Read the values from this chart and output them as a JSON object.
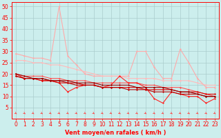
{
  "title": "",
  "xlabel": "Vent moyen/en rafales ( km/h )",
  "ylabel": "",
  "xlim": [
    -0.5,
    23.5
  ],
  "ylim": [
    0,
    52
  ],
  "yticks": [
    5,
    10,
    15,
    20,
    25,
    30,
    35,
    40,
    45,
    50
  ],
  "xticks": [
    0,
    1,
    2,
    3,
    4,
    5,
    6,
    7,
    8,
    9,
    10,
    11,
    12,
    13,
    14,
    15,
    16,
    17,
    18,
    19,
    20,
    21,
    22,
    23
  ],
  "bg_color": "#cceeed",
  "grid_color": "#aacccc",
  "series": [
    {
      "x": [
        0,
        1,
        2,
        3,
        4,
        5,
        6,
        7,
        8,
        9,
        10,
        11,
        12,
        13,
        14,
        15,
        16,
        17,
        18,
        19,
        20,
        21,
        22,
        23
      ],
      "y": [
        29,
        28,
        27,
        27,
        26,
        50,
        28,
        24,
        20,
        19,
        19,
        19,
        19,
        19,
        30,
        30,
        23,
        18,
        18,
        31,
        25,
        18,
        14,
        14
      ],
      "color": "#ffaaaa",
      "lw": 0.8,
      "marker": "D",
      "ms": 1.5
    },
    {
      "x": [
        0,
        1,
        2,
        3,
        4,
        5,
        6,
        7,
        8,
        9,
        10,
        11,
        12,
        13,
        14,
        15,
        16,
        17,
        18,
        19,
        20,
        21,
        22,
        23
      ],
      "y": [
        26,
        26,
        25,
        25,
        24,
        24,
        23,
        22,
        21,
        20,
        19,
        19,
        19,
        18,
        18,
        18,
        18,
        17,
        17,
        17,
        17,
        16,
        15,
        15
      ],
      "color": "#ffbbbb",
      "lw": 0.8,
      "marker": "D",
      "ms": 1.5
    },
    {
      "x": [
        0,
        1,
        2,
        3,
        4,
        5,
        6,
        7,
        8,
        9,
        10,
        11,
        12,
        13,
        14,
        15,
        16,
        17,
        18,
        19,
        20,
        21,
        22,
        23
      ],
      "y": [
        20,
        19,
        19,
        19,
        18,
        18,
        17,
        17,
        17,
        16,
        16,
        16,
        16,
        16,
        16,
        15,
        15,
        14,
        14,
        14,
        13,
        12,
        11,
        10
      ],
      "color": "#ff5555",
      "lw": 0.8,
      "marker": "D",
      "ms": 1.5
    },
    {
      "x": [
        0,
        1,
        2,
        3,
        4,
        5,
        6,
        7,
        8,
        9,
        10,
        11,
        12,
        13,
        14,
        15,
        16,
        17,
        18,
        19,
        20,
        21,
        22,
        23
      ],
      "y": [
        20,
        18,
        18,
        17,
        17,
        16,
        12,
        14,
        15,
        15,
        14,
        15,
        19,
        16,
        16,
        14,
        9,
        7,
        12,
        11,
        10,
        10,
        7,
        9
      ],
      "color": "#ff2222",
      "lw": 0.8,
      "marker": "D",
      "ms": 1.5
    },
    {
      "x": [
        0,
        1,
        2,
        3,
        4,
        5,
        6,
        7,
        8,
        9,
        10,
        11,
        12,
        13,
        14,
        15,
        16,
        17,
        18,
        19,
        20,
        21,
        22,
        23
      ],
      "y": [
        19,
        18,
        18,
        17,
        17,
        16,
        16,
        16,
        15,
        15,
        14,
        14,
        14,
        14,
        14,
        13,
        13,
        13,
        13,
        12,
        12,
        12,
        11,
        11
      ],
      "color": "#dd0000",
      "lw": 0.8,
      "marker": "D",
      "ms": 1.5
    },
    {
      "x": [
        0,
        1,
        2,
        3,
        4,
        5,
        6,
        7,
        8,
        9,
        10,
        11,
        12,
        13,
        14,
        15,
        16,
        17,
        18,
        19,
        20,
        21,
        22,
        23
      ],
      "y": [
        19,
        18,
        18,
        18,
        17,
        17,
        16,
        15,
        15,
        15,
        14,
        14,
        14,
        13,
        13,
        13,
        12,
        12,
        12,
        11,
        11,
        11,
        10,
        10
      ],
      "color": "#bb0000",
      "lw": 0.8,
      "marker": "D",
      "ms": 1.5
    },
    {
      "x": [
        0,
        1,
        2,
        3,
        4,
        5,
        6,
        7,
        8,
        9,
        10,
        11,
        12,
        13,
        14,
        15,
        16,
        17,
        18,
        19,
        20,
        21,
        22,
        23
      ],
      "y": [
        20,
        19,
        18,
        18,
        17,
        17,
        17,
        16,
        16,
        16,
        15,
        15,
        15,
        15,
        14,
        14,
        14,
        14,
        13,
        12,
        12,
        11,
        10,
        10
      ],
      "color": "#990000",
      "lw": 0.8,
      "marker": "D",
      "ms": 1.5
    }
  ],
  "arrow_color": "#ff4444",
  "axis_color": "#ff0000",
  "tick_color": "#ff0000",
  "label_color": "#ff0000",
  "label_fontsize": 6,
  "tick_fontsize": 5.5
}
